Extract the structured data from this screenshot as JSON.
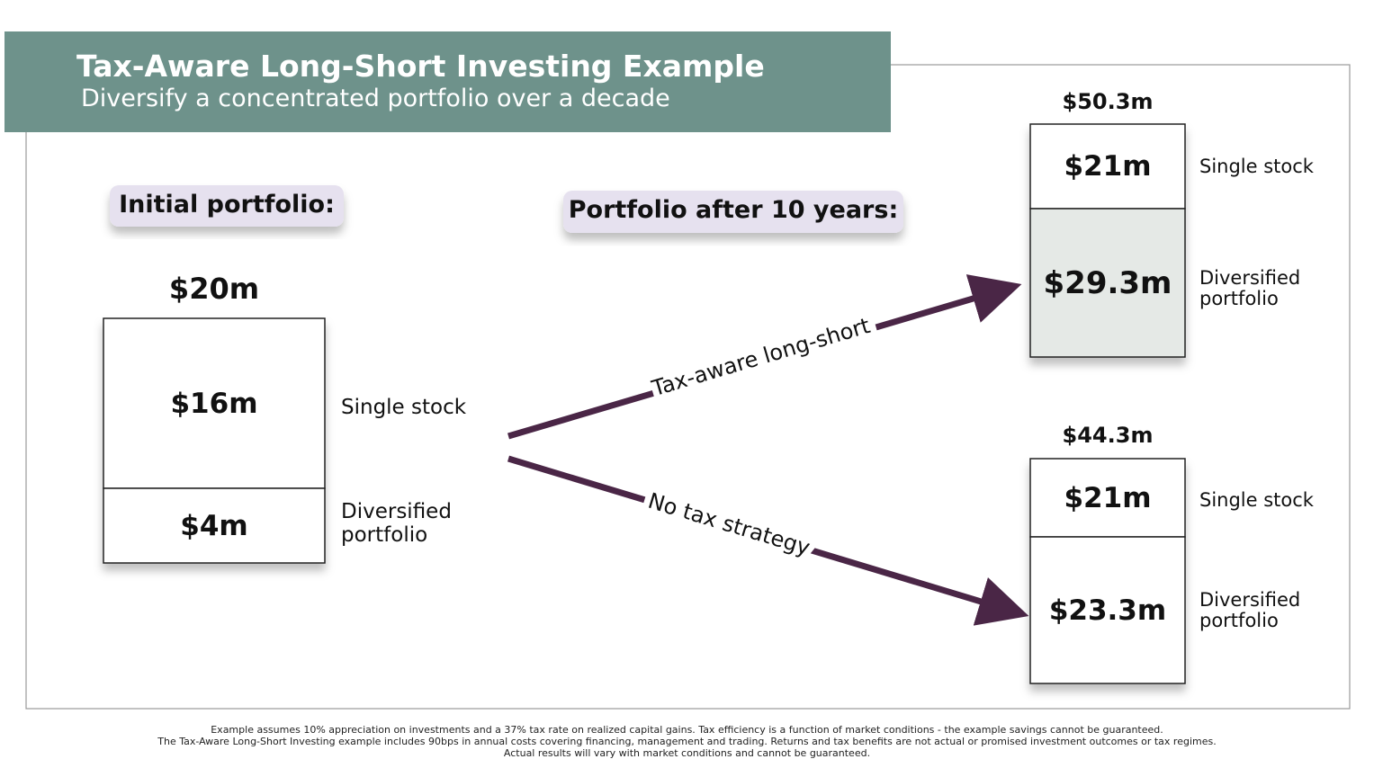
{
  "header": {
    "title": "Tax-Aware Long-Short Investing Example",
    "subtitle": "Diversify a concentrated portfolio over a decade"
  },
  "initial": {
    "heading": "Initial portfolio:",
    "total": "$20m",
    "segments": [
      {
        "value": "$16m",
        "label": "Single stock"
      },
      {
        "value": "$4m",
        "label": "Diversified portfolio"
      }
    ]
  },
  "after": {
    "heading": "Portfolio after 10 years:",
    "scenarios": [
      {
        "strategy": "Tax-aware long-short",
        "total": "$50.3m",
        "segments": [
          {
            "value": "$21m",
            "label": "Single stock"
          },
          {
            "value": "$29.3m",
            "label": "Diversified portfolio"
          }
        ]
      },
      {
        "strategy": "No tax strategy",
        "total": "$44.3m",
        "segments": [
          {
            "value": "$21m",
            "label": "Single stock"
          },
          {
            "value": "$23.3m",
            "label": "Diversified portfolio"
          }
        ]
      }
    ]
  },
  "footnote": [
    "Example assumes 10% appreciation on investments and a 37% tax rate on realized capital gains. Tax efficiency is a function of market conditions - the example savings cannot be guaranteed.",
    "The Tax-Aware Long-Short Investing example includes 90bps in annual costs covering financing, management and trading. Returns and tax benefits are not actual or promised investment outcomes or tax regimes.",
    "Actual results will vary with market conditions and cannot be guaranteed."
  ]
}
